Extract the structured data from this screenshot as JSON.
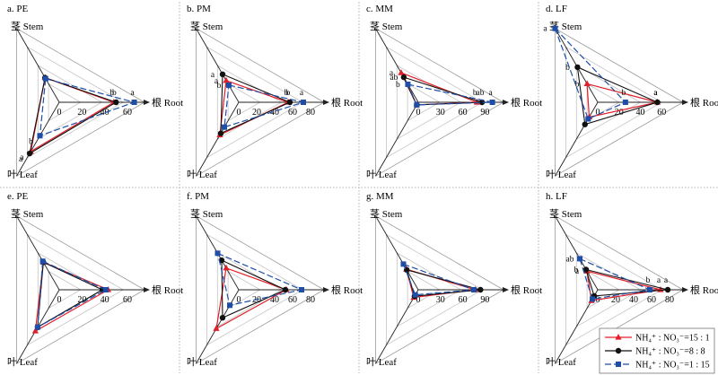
{
  "legend": {
    "items": [
      {
        "label": "NH₄⁺ : NO₃⁻=15 : 1",
        "color": "#e0202a",
        "marker": "triangle",
        "dash": "none"
      },
      {
        "label": "NH₄⁺ : NO₃⁻=8 : 8",
        "color": "#111111",
        "marker": "circle",
        "dash": "none"
      },
      {
        "label": "NH₄⁺ : NO₃⁻=1 : 15",
        "color": "#1f4ea8",
        "marker": "square",
        "dash": "7,3"
      }
    ]
  },
  "chart_data": [
    {
      "type": "radar",
      "title": "a. PE",
      "axes": [
        "茎 Stem",
        "根 Root",
        "叶 Leaf"
      ],
      "ticks": [
        0,
        20,
        40,
        60
      ],
      "max": 75,
      "series": [
        {
          "values": [
            25,
            48,
            50
          ],
          "labels": [
            "",
            "b",
            "a"
          ]
        },
        {
          "values": [
            25,
            50,
            52
          ],
          "labels": [
            "",
            "b",
            "a"
          ]
        },
        {
          "values": [
            24,
            66,
            34
          ],
          "labels": [
            "",
            "a",
            "b"
          ]
        }
      ]
    },
    {
      "type": "radar",
      "title": "b. PM",
      "axes": [
        "茎 Stem",
        "根 Root",
        "叶 Leaf"
      ],
      "ticks": [
        0,
        20,
        40,
        60,
        80
      ],
      "max": 95,
      "series": [
        {
          "values": [
            28,
            55,
            42
          ],
          "labels": [
            "a",
            "b",
            ""
          ]
        },
        {
          "values": [
            36,
            57,
            40
          ],
          "labels": [
            "a",
            "b",
            ""
          ]
        },
        {
          "values": [
            22,
            72,
            32
          ],
          "labels": [
            "b",
            "a",
            ""
          ]
        }
      ]
    },
    {
      "type": "radar",
      "title": "c. MM",
      "axes": [
        "茎 Stem",
        "根 Root",
        "叶 Leaf"
      ],
      "ticks": [
        0,
        30,
        60,
        90
      ],
      "max": 115,
      "series": [
        {
          "values": [
            46,
            79,
            4
          ],
          "labels": [
            "a",
            "b",
            ""
          ]
        },
        {
          "values": [
            39,
            86,
            4
          ],
          "labels": [
            "ab",
            "ab",
            ""
          ]
        },
        {
          "values": [
            28,
            100,
            4
          ],
          "labels": [
            "b",
            "a",
            ""
          ]
        }
      ]
    },
    {
      "type": "radar",
      "title": "d. LF",
      "axes": [
        "茎 Stem",
        "根 Root",
        "叶 Leaf"
      ],
      "ticks": [
        0,
        20,
        40,
        60
      ],
      "max": 80,
      "series": [
        {
          "values": [
            20,
            56,
            16
          ],
          "labels": [
            "b",
            "a",
            ""
          ]
        },
        {
          "values": [
            38,
            56,
            24
          ],
          "labels": [
            "b",
            "a",
            ""
          ]
        },
        {
          "values": [
            80,
            26,
            18
          ],
          "labels": [
            "a",
            "b",
            ""
          ]
        }
      ]
    },
    {
      "type": "radar",
      "title": "e. PE",
      "axes": [
        "茎 Stem",
        "根 Root",
        "叶 Leaf"
      ],
      "ticks": [
        0,
        20,
        40,
        60
      ],
      "max": 75,
      "series": [
        {
          "values": [
            28,
            43,
            42
          ],
          "labels": [
            "",
            "",
            ""
          ]
        },
        {
          "values": [
            28,
            38,
            38
          ],
          "labels": [
            "",
            "",
            ""
          ]
        },
        {
          "values": [
            29,
            41,
            38
          ],
          "labels": [
            "",
            "",
            ""
          ]
        }
      ]
    },
    {
      "type": "radar",
      "title": "f. PM",
      "axes": [
        "茎 Stem",
        "根 Root",
        "叶 Leaf"
      ],
      "ticks": [
        0,
        20,
        40,
        60,
        80
      ],
      "max": 95,
      "series": [
        {
          "values": [
            28,
            53,
            50
          ],
          "labels": [
            "",
            "",
            ""
          ]
        },
        {
          "values": [
            38,
            52,
            36
          ],
          "labels": [
            "",
            "",
            ""
          ]
        },
        {
          "values": [
            47,
            70,
            20
          ],
          "labels": [
            "",
            "",
            ""
          ]
        }
      ]
    },
    {
      "type": "radar",
      "title": "g. MM",
      "axes": [
        "茎 Stem",
        "根 Root",
        "叶 Leaf"
      ],
      "ticks": [
        0,
        30,
        60,
        90
      ],
      "max": 115,
      "series": [
        {
          "values": [
            32,
            77,
            12
          ],
          "labels": [
            "",
            "",
            ""
          ]
        },
        {
          "values": [
            31,
            84,
            10
          ],
          "labels": [
            "",
            "",
            ""
          ]
        },
        {
          "values": [
            40,
            75,
            8
          ],
          "labels": [
            "",
            "",
            ""
          ]
        }
      ]
    },
    {
      "type": "radar",
      "title": "h. LF",
      "axes": [
        "茎 Stem",
        "根 Root",
        "叶 Leaf"
      ],
      "ticks": [
        0,
        20,
        40,
        60,
        80
      ],
      "max": 95,
      "series": [
        {
          "values": [
            24,
            70,
            14
          ],
          "labels": [
            "a",
            "a",
            ""
          ]
        },
        {
          "values": [
            26,
            78,
            8
          ],
          "labels": [
            "b",
            "a",
            ""
          ]
        },
        {
          "values": [
            40,
            58,
            12
          ],
          "labels": [
            "ab",
            "b",
            ""
          ]
        }
      ]
    }
  ]
}
